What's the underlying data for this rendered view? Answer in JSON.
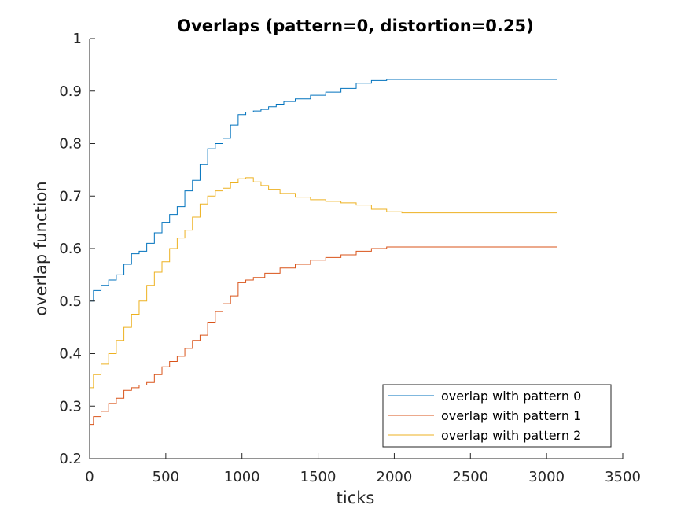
{
  "chart_data": {
    "type": "line",
    "title": "Overlaps (pattern=0, distortion=0.25)",
    "xlabel": "ticks",
    "ylabel": "overlap function",
    "xlim": [
      0,
      3500
    ],
    "ylim": [
      0.2,
      1
    ],
    "xticks": [
      0,
      500,
      1000,
      1500,
      2000,
      2500,
      3000,
      3500
    ],
    "yticks": [
      0.2,
      0.3,
      0.4,
      0.5,
      0.6,
      0.7,
      0.8,
      0.9,
      1
    ],
    "xtick_labels": [
      "0",
      "500",
      "1000",
      "1500",
      "2000",
      "2500",
      "3000",
      "3500"
    ],
    "ytick_labels": [
      "0.2",
      "0.3",
      "0.4",
      "0.5",
      "0.6",
      "0.7",
      "0.8",
      "0.9",
      "1"
    ],
    "grid": false,
    "legend_position": "bottom-right",
    "series": [
      {
        "name": "overlap with pattern 0",
        "color": "#0072BD",
        "points": [
          [
            0,
            0.5
          ],
          [
            50,
            0.52
          ],
          [
            100,
            0.53
          ],
          [
            150,
            0.54
          ],
          [
            200,
            0.55
          ],
          [
            250,
            0.57
          ],
          [
            300,
            0.59
          ],
          [
            350,
            0.595
          ],
          [
            400,
            0.61
          ],
          [
            450,
            0.63
          ],
          [
            500,
            0.65
          ],
          [
            550,
            0.665
          ],
          [
            600,
            0.68
          ],
          [
            650,
            0.71
          ],
          [
            700,
            0.73
          ],
          [
            750,
            0.76
          ],
          [
            800,
            0.79
          ],
          [
            850,
            0.8
          ],
          [
            900,
            0.81
          ],
          [
            950,
            0.835
          ],
          [
            1000,
            0.855
          ],
          [
            1050,
            0.86
          ],
          [
            1100,
            0.862
          ],
          [
            1150,
            0.865
          ],
          [
            1200,
            0.87
          ],
          [
            1250,
            0.875
          ],
          [
            1300,
            0.88
          ],
          [
            1400,
            0.885
          ],
          [
            1500,
            0.892
          ],
          [
            1600,
            0.898
          ],
          [
            1700,
            0.905
          ],
          [
            1800,
            0.915
          ],
          [
            1900,
            0.92
          ],
          [
            2000,
            0.922
          ],
          [
            2100,
            0.922
          ],
          [
            2500,
            0.922
          ],
          [
            3070,
            0.922
          ]
        ]
      },
      {
        "name": "overlap with pattern 1",
        "color": "#D95319",
        "points": [
          [
            0,
            0.265
          ],
          [
            50,
            0.28
          ],
          [
            100,
            0.29
          ],
          [
            150,
            0.305
          ],
          [
            200,
            0.315
          ],
          [
            250,
            0.33
          ],
          [
            300,
            0.335
          ],
          [
            350,
            0.34
          ],
          [
            400,
            0.345
          ],
          [
            450,
            0.36
          ],
          [
            500,
            0.375
          ],
          [
            550,
            0.385
          ],
          [
            600,
            0.395
          ],
          [
            650,
            0.41
          ],
          [
            700,
            0.425
          ],
          [
            750,
            0.435
          ],
          [
            800,
            0.46
          ],
          [
            850,
            0.48
          ],
          [
            900,
            0.495
          ],
          [
            950,
            0.51
          ],
          [
            1000,
            0.535
          ],
          [
            1050,
            0.54
          ],
          [
            1100,
            0.545
          ],
          [
            1200,
            0.553
          ],
          [
            1300,
            0.563
          ],
          [
            1400,
            0.57
          ],
          [
            1500,
            0.578
          ],
          [
            1600,
            0.583
          ],
          [
            1700,
            0.588
          ],
          [
            1800,
            0.595
          ],
          [
            1900,
            0.6
          ],
          [
            2000,
            0.603
          ],
          [
            2500,
            0.603
          ],
          [
            3070,
            0.603
          ]
        ]
      },
      {
        "name": "overlap with pattern 2",
        "color": "#EDB120",
        "points": [
          [
            0,
            0.335
          ],
          [
            50,
            0.36
          ],
          [
            100,
            0.38
          ],
          [
            150,
            0.4
          ],
          [
            200,
            0.425
          ],
          [
            250,
            0.45
          ],
          [
            300,
            0.475
          ],
          [
            350,
            0.5
          ],
          [
            400,
            0.53
          ],
          [
            450,
            0.555
          ],
          [
            500,
            0.575
          ],
          [
            550,
            0.6
          ],
          [
            600,
            0.62
          ],
          [
            650,
            0.635
          ],
          [
            700,
            0.66
          ],
          [
            750,
            0.685
          ],
          [
            800,
            0.7
          ],
          [
            850,
            0.71
          ],
          [
            900,
            0.715
          ],
          [
            950,
            0.725
          ],
          [
            1000,
            0.733
          ],
          [
            1050,
            0.735
          ],
          [
            1100,
            0.727
          ],
          [
            1150,
            0.72
          ],
          [
            1200,
            0.713
          ],
          [
            1300,
            0.705
          ],
          [
            1400,
            0.698
          ],
          [
            1500,
            0.693
          ],
          [
            1600,
            0.69
          ],
          [
            1700,
            0.687
          ],
          [
            1800,
            0.683
          ],
          [
            1900,
            0.675
          ],
          [
            2000,
            0.67
          ],
          [
            2100,
            0.668
          ],
          [
            2500,
            0.668
          ],
          [
            3070,
            0.668
          ]
        ]
      }
    ]
  }
}
